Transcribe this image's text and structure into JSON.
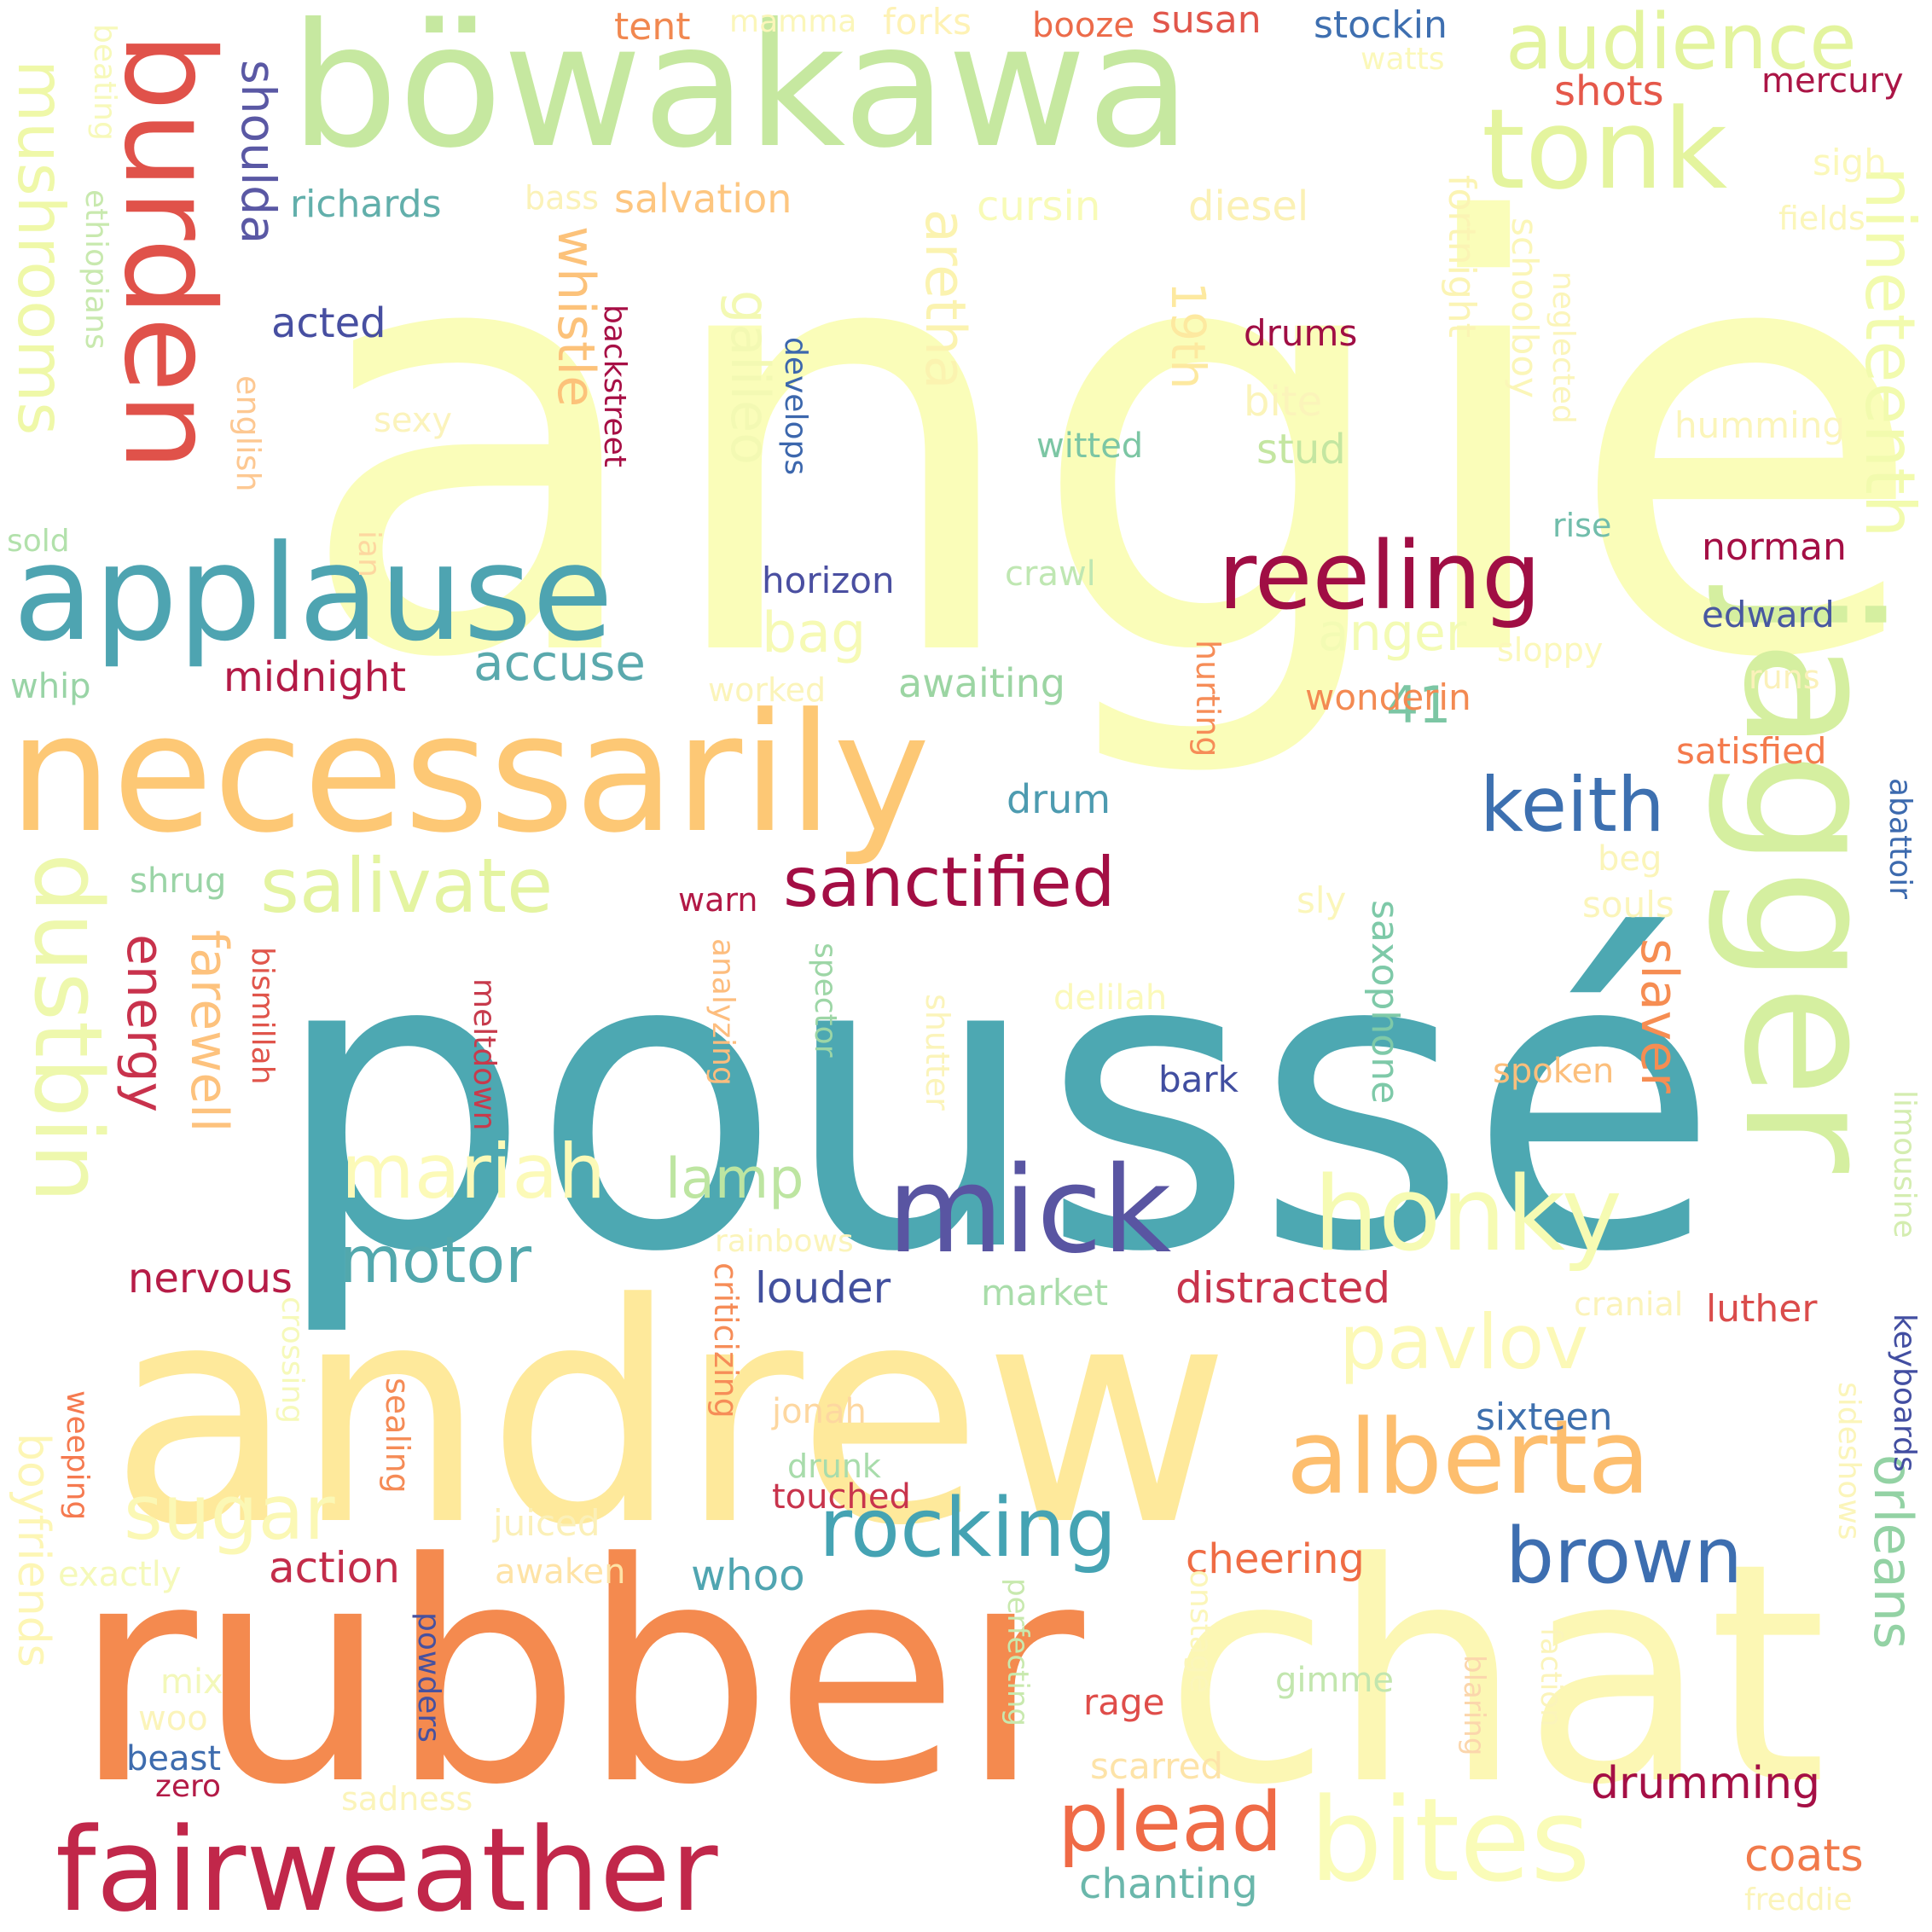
{
  "words": [
    {
      "text": "angie",
      "color": "#fafdb9"
    },
    {
      "text": "poussé",
      "color": "#4da8b2"
    },
    {
      "text": "rubber",
      "color": "#f48a4f"
    },
    {
      "text": "andrew",
      "color": "#fee99b"
    },
    {
      "text": "chat",
      "color": "#fcf7b4"
    },
    {
      "text": "jagger",
      "color": "#d5efa0"
    },
    {
      "text": "necessarily",
      "color": "#fdc875"
    },
    {
      "text": "böwakawa",
      "color": "#c6e8a0"
    },
    {
      "text": "tonk",
      "color": "#e4f49e"
    },
    {
      "text": "applause",
      "color": "#4ea4b1"
    },
    {
      "text": "fairweather",
      "color": "#c1274a"
    },
    {
      "text": "burden",
      "color": "#e0524a"
    },
    {
      "text": "reeling",
      "color": "#a00e44"
    },
    {
      "text": "mick",
      "color": "#5955a2"
    },
    {
      "text": "bites",
      "color": "#fafcb8"
    },
    {
      "text": "dustbin",
      "color": "#eef8ad"
    },
    {
      "text": "alberta",
      "color": "#fdbe6e"
    },
    {
      "text": "honky",
      "color": "#f6fbb3"
    },
    {
      "text": "rocking",
      "color": "#45a3b3"
    },
    {
      "text": "sanctified",
      "color": "#a30e44"
    },
    {
      "text": "plead",
      "color": "#ef6a46"
    },
    {
      "text": "brown",
      "color": "#3d6eb0"
    },
    {
      "text": "audience",
      "color": "#e3f49e"
    },
    {
      "text": "nineteenth",
      "color": "#f2fbae"
    },
    {
      "text": "salivate",
      "color": "#e4f4a1"
    },
    {
      "text": "keith",
      "color": "#3d70b0"
    },
    {
      "text": "mushrooms",
      "color": "#eff8a8"
    },
    {
      "text": "mariah",
      "color": "#fcfab8"
    },
    {
      "text": "motor",
      "color": "#52a8ad"
    },
    {
      "text": "pavlov",
      "color": "#fcf9b7"
    },
    {
      "text": "sugar",
      "color": "#fbf8b5"
    },
    {
      "text": "aretha",
      "color": "#fbf3b0"
    },
    {
      "text": "whistle",
      "color": "#fcc27a"
    },
    {
      "text": "farewell",
      "color": "#fdc27d"
    },
    {
      "text": "energy",
      "color": "#c8324c"
    },
    {
      "text": "orleans",
      "color": "#93d2a4"
    },
    {
      "text": "slaver",
      "color": "#f68d52"
    },
    {
      "text": "anger",
      "color": "#f3fbb4"
    },
    {
      "text": "galileo",
      "color": "#f3f9b3"
    },
    {
      "text": "shoulda",
      "color": "#5a58a4"
    },
    {
      "text": "bag",
      "color": "#f6fab5"
    },
    {
      "text": "accuse",
      "color": "#5aa9ad"
    },
    {
      "text": "19th",
      "color": "#fde9a0"
    },
    {
      "text": "lamp",
      "color": "#bde5a1"
    },
    {
      "text": "41",
      "color": "#7cc6a4"
    },
    {
      "text": "drumming",
      "color": "#a50f45"
    },
    {
      "text": "boyfriends",
      "color": "#fdf6b5"
    },
    {
      "text": "coats",
      "color": "#f17a4b"
    },
    {
      "text": "chanting",
      "color": "#6ab7ab"
    },
    {
      "text": "distracted",
      "color": "#c8344c"
    },
    {
      "text": "louder",
      "color": "#42509e"
    },
    {
      "text": "nervous",
      "color": "#b61c47"
    },
    {
      "text": "midnight",
      "color": "#b31a46"
    },
    {
      "text": "action",
      "color": "#c32c4a"
    },
    {
      "text": "awaiting",
      "color": "#9cd5a3"
    },
    {
      "text": "whoo",
      "color": "#50a5b1"
    },
    {
      "text": "cheering",
      "color": "#ef6c44"
    },
    {
      "text": "salvation",
      "color": "#fdc680"
    },
    {
      "text": "richards",
      "color": "#62afab"
    },
    {
      "text": "acted",
      "color": "#474fa1"
    },
    {
      "text": "saxophone",
      "color": "#7ec9a8"
    },
    {
      "text": "diesel",
      "color": "#fbf1b5"
    },
    {
      "text": "cursin",
      "color": "#f8fbb8"
    },
    {
      "text": "stud",
      "color": "#c4e6a1"
    },
    {
      "text": "fortnight",
      "color": "#fbf4b4"
    },
    {
      "text": "schoolboy",
      "color": "#fbf6b8"
    },
    {
      "text": "drums",
      "color": "#a00e44"
    },
    {
      "text": "market",
      "color": "#a9ddaa"
    },
    {
      "text": "norman",
      "color": "#a40f45"
    },
    {
      "text": "edward",
      "color": "#4858a1"
    },
    {
      "text": "satisfied",
      "color": "#f47a4c"
    },
    {
      "text": "wonderin",
      "color": "#f38a52"
    },
    {
      "text": "luther",
      "color": "#da4c4b"
    },
    {
      "text": "sixteen",
      "color": "#3e70ae"
    },
    {
      "text": "stockin",
      "color": "#3e6fb0"
    },
    {
      "text": "susan",
      "color": "#e1564b"
    },
    {
      "text": "shots",
      "color": "#e5584a"
    },
    {
      "text": "tent",
      "color": "#f18850"
    },
    {
      "text": "mercury",
      "color": "#ab1546"
    },
    {
      "text": "booze",
      "color": "#ec6b4a"
    },
    {
      "text": "forks",
      "color": "#fef2b5"
    },
    {
      "text": "mamma",
      "color": "#fbf6ba"
    },
    {
      "text": "watts",
      "color": "#fbf8ba"
    },
    {
      "text": "sigh",
      "color": "#fbf8ba"
    },
    {
      "text": "fields",
      "color": "#fbf6ba"
    },
    {
      "text": "humming",
      "color": "#fbf5ba"
    },
    {
      "text": "rise",
      "color": "#71bdab"
    },
    {
      "text": "crawl",
      "color": "#bfe7b2"
    },
    {
      "text": "horizon",
      "color": "#4a4fa1"
    },
    {
      "text": "sloppy",
      "color": "#fbf8ba"
    },
    {
      "text": "runs",
      "color": "#fbf1ba"
    },
    {
      "text": "worked",
      "color": "#fbf4ba"
    },
    {
      "text": "whip",
      "color": "#99d4a6"
    },
    {
      "text": "sold",
      "color": "#b2e1ab"
    },
    {
      "text": "ian",
      "color": "#fdd7a0"
    },
    {
      "text": "english",
      "color": "#fdc892"
    },
    {
      "text": "ethiopians",
      "color": "#c8e9ae"
    },
    {
      "text": "beating",
      "color": "#f7f9ba"
    },
    {
      "text": "sexy",
      "color": "#fbf3bc"
    },
    {
      "text": "bite",
      "color": "#fbf4ba"
    },
    {
      "text": "witted",
      "color": "#7cc6a4"
    },
    {
      "text": "bass",
      "color": "#fbf2b8"
    },
    {
      "text": "backstreet",
      "color": "#a70f45"
    },
    {
      "text": "develops",
      "color": "#3c67ad"
    },
    {
      "text": "neglected",
      "color": "#fbf5ba"
    },
    {
      "text": "drum",
      "color": "#4d9bb0"
    },
    {
      "text": "hurting",
      "color": "#f68d58"
    },
    {
      "text": "shrug",
      "color": "#9ad4a6"
    },
    {
      "text": "warn",
      "color": "#b21946"
    },
    {
      "text": "sly",
      "color": "#fbf6ba"
    },
    {
      "text": "beg",
      "color": "#fbf5ba"
    },
    {
      "text": "souls",
      "color": "#fbf5ba"
    },
    {
      "text": "abattoir",
      "color": "#3c6aae"
    },
    {
      "text": "delilah",
      "color": "#fbf9ba"
    },
    {
      "text": "bark",
      "color": "#414ea0"
    },
    {
      "text": "spoken",
      "color": "#fcbf7c"
    },
    {
      "text": "bismillah",
      "color": "#e0554b"
    },
    {
      "text": "meltdown",
      "color": "#c73a4c"
    },
    {
      "text": "analyzing",
      "color": "#fdbd7e"
    },
    {
      "text": "spector",
      "color": "#9dd6a6"
    },
    {
      "text": "shutter",
      "color": "#fbf4ba"
    },
    {
      "text": "limousine",
      "color": "#d4edb0"
    },
    {
      "text": "keyboards",
      "color": "#424ea1"
    },
    {
      "text": "sideshows",
      "color": "#fbf5ba"
    },
    {
      "text": "cranial",
      "color": "#fbf3ba"
    },
    {
      "text": "rainbows",
      "color": "#fbf4ba"
    },
    {
      "text": "crossing",
      "color": "#f6f9ba"
    },
    {
      "text": "weeping",
      "color": "#f57a50"
    },
    {
      "text": "sealing",
      "color": "#f58b56"
    },
    {
      "text": "criticizing",
      "color": "#f68d58"
    },
    {
      "text": "jonah",
      "color": "#fdd7a0"
    },
    {
      "text": "drunk",
      "color": "#a8dcab"
    },
    {
      "text": "touched",
      "color": "#c8344c"
    },
    {
      "text": "juiced",
      "color": "#fbf0b8"
    },
    {
      "text": "awaken",
      "color": "#fee3a6"
    },
    {
      "text": "exactly",
      "color": "#f5f9ba"
    },
    {
      "text": "mix",
      "color": "#f3f8ba"
    },
    {
      "text": "woo",
      "color": "#fbf4ba"
    },
    {
      "text": "beast",
      "color": "#3e6cae"
    },
    {
      "text": "zero",
      "color": "#b31a46"
    },
    {
      "text": "powders",
      "color": "#47519f"
    },
    {
      "text": "sadness",
      "color": "#fbf4ba"
    },
    {
      "text": "perfecting",
      "color": "#c8e9ae"
    },
    {
      "text": "onstage",
      "color": "#fbf6ba"
    },
    {
      "text": "rage",
      "color": "#df4d4a"
    },
    {
      "text": "scarred",
      "color": "#fde3a8"
    },
    {
      "text": "gimme",
      "color": "#c2e6ae"
    },
    {
      "text": "blaring",
      "color": "#fbd6ac"
    },
    {
      "text": "faction",
      "color": "#fbf4ba"
    },
    {
      "text": "freddie",
      "color": "#fbf4ba"
    }
  ]
}
